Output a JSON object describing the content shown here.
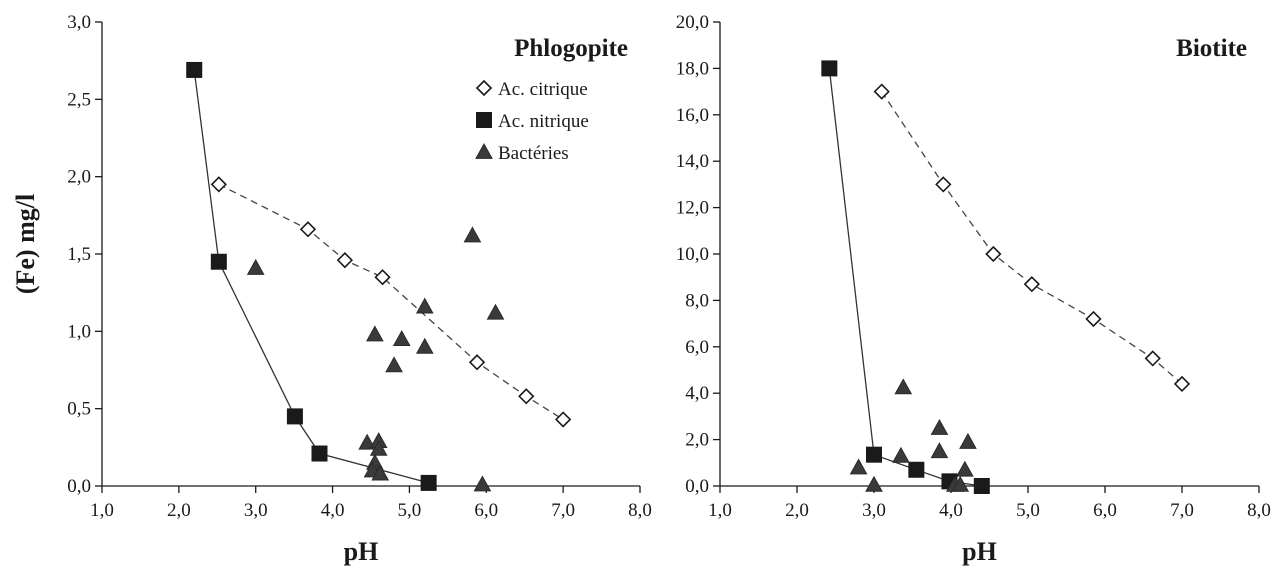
{
  "chart_data": [
    {
      "type": "scatter",
      "title": "Phlogopite",
      "xlabel": "pH",
      "ylabel": "(Fe) mg/l",
      "xlim": [
        1.0,
        8.0
      ],
      "ylim": [
        0.0,
        3.0
      ],
      "x_ticks": [
        "1,0",
        "2,0",
        "3,0",
        "4,0",
        "5,0",
        "6,0",
        "7,0",
        "8,0"
      ],
      "y_ticks": [
        "0,0",
        "0,5",
        "1,0",
        "1,5",
        "2,0",
        "2,5",
        "3,0"
      ],
      "x_tick_values": [
        1,
        2,
        3,
        4,
        5,
        6,
        7,
        8
      ],
      "y_tick_values": [
        0,
        0.5,
        1.0,
        1.5,
        2.0,
        2.5,
        3.0
      ],
      "grid": false,
      "legend_position": "top-right",
      "series": [
        {
          "name": "Ac. citrique",
          "marker": "open-diamond",
          "line": "dashed",
          "points": [
            [
              2.52,
              1.95
            ],
            [
              3.68,
              1.66
            ],
            [
              4.16,
              1.46
            ],
            [
              4.65,
              1.35
            ],
            [
              5.88,
              0.8
            ],
            [
              6.52,
              0.58
            ],
            [
              7.0,
              0.43
            ]
          ]
        },
        {
          "name": "Ac. nitrique",
          "marker": "filled-square",
          "line": "solid",
          "points": [
            [
              2.2,
              2.69
            ],
            [
              2.52,
              1.45
            ],
            [
              3.51,
              0.45
            ],
            [
              3.83,
              0.21
            ],
            [
              5.25,
              0.02
            ]
          ]
        },
        {
          "name": "Bactéries",
          "marker": "filled-triangle",
          "line": "none",
          "points": [
            [
              3.0,
              1.41
            ],
            [
              4.55,
              0.98
            ],
            [
              4.9,
              0.95
            ],
            [
              4.8,
              0.78
            ],
            [
              5.2,
              1.16
            ],
            [
              5.2,
              0.9
            ],
            [
              5.82,
              1.62
            ],
            [
              6.12,
              1.12
            ],
            [
              4.45,
              0.28
            ],
            [
              4.6,
              0.29
            ],
            [
              4.6,
              0.24
            ],
            [
              4.55,
              0.15
            ],
            [
              4.52,
              0.1
            ],
            [
              4.62,
              0.08
            ],
            [
              5.95,
              0.01
            ]
          ]
        }
      ]
    },
    {
      "type": "scatter",
      "title": "Biotite",
      "xlabel": "pH",
      "ylabel": "",
      "xlim": [
        1.0,
        8.0
      ],
      "ylim": [
        0.0,
        20.0
      ],
      "x_ticks": [
        "1,0",
        "2,0",
        "3,0",
        "4,0",
        "5,0",
        "6,0",
        "7,0",
        "8,0"
      ],
      "y_ticks": [
        "0,0",
        "2,0",
        "4,0",
        "6,0",
        "8,0",
        "10,0",
        "12,0",
        "14,0",
        "16,0",
        "18,0",
        "20,0"
      ],
      "x_tick_values": [
        1,
        2,
        3,
        4,
        5,
        6,
        7,
        8
      ],
      "y_tick_values": [
        0,
        2,
        4,
        6,
        8,
        10,
        12,
        14,
        16,
        18,
        20
      ],
      "grid": false,
      "series": [
        {
          "name": "Ac. citrique",
          "marker": "open-diamond",
          "line": "dashed",
          "points": [
            [
              3.1,
              17.0
            ],
            [
              3.9,
              13.0
            ],
            [
              4.55,
              10.0
            ],
            [
              5.05,
              8.7
            ],
            [
              5.85,
              7.2
            ],
            [
              6.62,
              5.5
            ],
            [
              7.0,
              4.4
            ]
          ]
        },
        {
          "name": "Ac. nitrique",
          "marker": "filled-square",
          "line": "solid",
          "points": [
            [
              2.42,
              18.0
            ],
            [
              3.0,
              1.35
            ],
            [
              3.55,
              0.7
            ],
            [
              3.98,
              0.2
            ],
            [
              4.4,
              0.0
            ]
          ]
        },
        {
          "name": "Bactéries",
          "marker": "filled-triangle",
          "line": "none",
          "points": [
            [
              2.8,
              0.8
            ],
            [
              3.0,
              0.05
            ],
            [
              3.35,
              1.3
            ],
            [
              3.38,
              4.25
            ],
            [
              3.85,
              2.5
            ],
            [
              3.85,
              1.5
            ],
            [
              4.22,
              1.9
            ],
            [
              4.18,
              0.7
            ],
            [
              4.05,
              0.05
            ],
            [
              4.12,
              0.05
            ]
          ]
        }
      ]
    }
  ]
}
